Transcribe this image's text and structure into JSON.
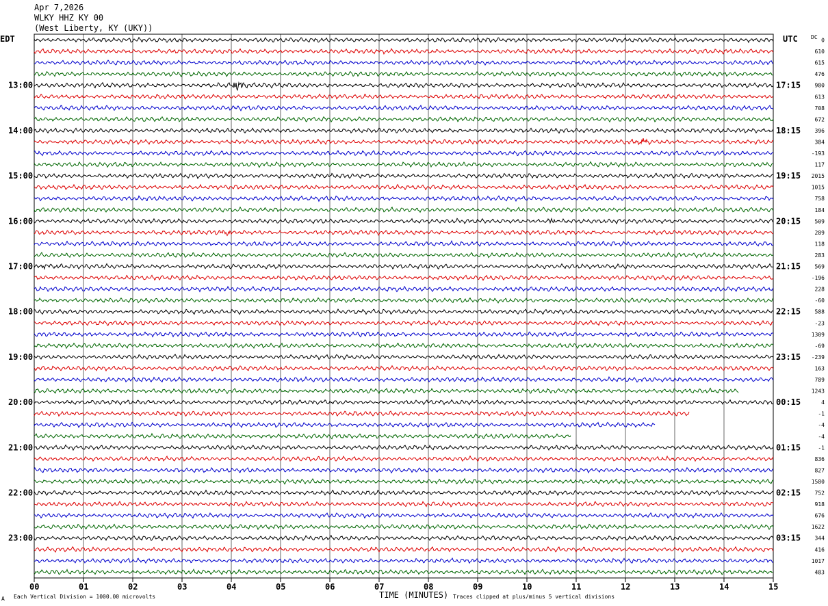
{
  "header": {
    "date": "Apr 7,2026",
    "station": "WLKY HHZ KY 00",
    "location": "(West Liberty, KY (UKY))"
  },
  "labels": {
    "left_tz": "EDT",
    "right_tz": "UTC",
    "dc_header": "DC",
    "xlabel": "TIME (MINUTES)",
    "footer_left": "Each Vertical Division = 1000.00 microvolts",
    "footer_right": "Traces clipped at plus/minus 5 vertical divisions",
    "corner_mark": "A"
  },
  "chart_data": {
    "type": "line",
    "title": "WLKY HHZ KY 00",
    "xlabel": "TIME (MINUTES)",
    "ylabel": "",
    "xlim": [
      0,
      15
    ],
    "x_ticks": [
      "00",
      "01",
      "02",
      "03",
      "04",
      "05",
      "06",
      "07",
      "08",
      "09",
      "10",
      "11",
      "12",
      "13",
      "14",
      "15"
    ],
    "rows_per_hour": 4,
    "trace_colors": [
      "#000000",
      "#dd0000",
      "#0000cc",
      "#006600"
    ],
    "left_hour_labels": [
      "13:00",
      "14:00",
      "15:00",
      "16:00",
      "17:00",
      "18:00",
      "19:00",
      "20:00",
      "21:00",
      "22:00",
      "23:00"
    ],
    "right_hour_labels": [
      "17:15",
      "18:15",
      "19:15",
      "20:15",
      "21:15",
      "22:15",
      "23:15",
      "00:15",
      "01:15",
      "02:15",
      "03:15"
    ],
    "first_labeled_row": 4,
    "dc_offsets": [
      "0",
      "610",
      "615",
      "476",
      "980",
      "613",
      "708",
      "672",
      "396",
      "384",
      "-193",
      "117",
      "2015",
      "1015",
      "758",
      "184",
      "509",
      "289",
      "118",
      "283",
      "569",
      "-196",
      "228",
      "-60",
      "588",
      "-23",
      "1309",
      "-69",
      "-239",
      "163",
      "789",
      "1243",
      "4",
      "-1",
      "-4",
      "-4",
      "-1",
      "836",
      "827",
      "1580",
      "752",
      "918",
      "676",
      "1622",
      "344",
      "416",
      "1017",
      "483"
    ],
    "trace_end_minutes": {
      "31": 14.3,
      "33": 13.3,
      "34": 12.6,
      "35": 10.9
    },
    "events": [
      {
        "row": 4,
        "minute": 4.1,
        "amplitude": 7
      },
      {
        "row": 9,
        "minute": 12.35,
        "amplitude": 7
      },
      {
        "row": 16,
        "minute": 10.5,
        "amplitude": 4
      },
      {
        "row": 17,
        "minute": 3.9,
        "amplitude": 4
      },
      {
        "row": 20,
        "minute": 0.2,
        "amplitude": 3
      }
    ]
  }
}
